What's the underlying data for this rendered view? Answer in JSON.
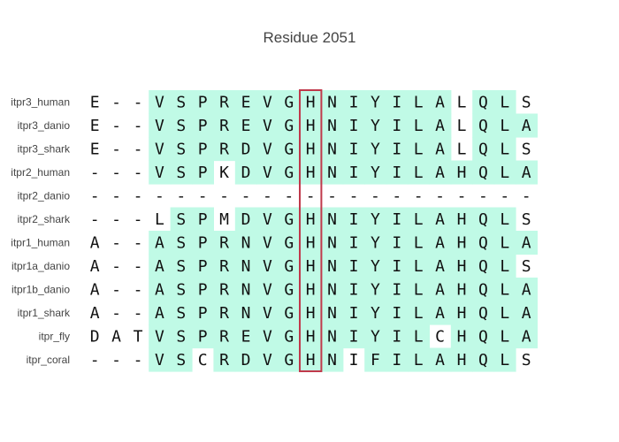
{
  "title": "Residue 2051",
  "colors": {
    "conserved": "#c0fae6",
    "highlight_box": "#c0394b",
    "text": "#111111",
    "label": "#444444"
  },
  "highlight_column": 10,
  "chart_data": {
    "type": "table",
    "title": "Residue 2051",
    "sequences": [
      {
        "name": "itpr3_human",
        "residues": "E--VSPREVGHNIYILALQLS"
      },
      {
        "name": "itpr3_danio",
        "residues": "E--VSPREVGHNIYILALQLA"
      },
      {
        "name": "itpr3_shark",
        "residues": "E--VSPRDVGHNIYILALQLS"
      },
      {
        "name": "itpr2_human",
        "residues": "---VSPKDVGHNIYILAHQLA"
      },
      {
        "name": "itpr2_danio",
        "residues": "---------------------"
      },
      {
        "name": "itpr2_shark",
        "residues": "---LSPMDVGHNIYILAHQLS"
      },
      {
        "name": "itpr1_human",
        "residues": "A--ASPRNVGHNIYILAHQLA"
      },
      {
        "name": "itpr1a_danio",
        "residues": "A--ASPRNVGHNIYILAHQLS"
      },
      {
        "name": "itpr1b_danio",
        "residues": "A--ASPRNVGHNIYILAHQLA"
      },
      {
        "name": "itpr1_shark",
        "residues": "A--ASPRNVGHNIYILAHQLA"
      },
      {
        "name": "itpr_fly",
        "residues": "DATVSPREVGHNIYILCHQLA"
      },
      {
        "name": "itpr_coral",
        "residues": "---VSCRDVGHNIFILAHQLS"
      }
    ],
    "shaded": [
      "000111111111111110110",
      "000111111111111110111",
      "000111111111111110110",
      "000111011111111111111",
      "000000000000000000000",
      "000011011111111111110",
      "000111111111111111111",
      "000111111111111111110",
      "000111111111111111111",
      "000111111111111111111",
      "000111111111111101111",
      "000110111111011111110"
    ]
  }
}
